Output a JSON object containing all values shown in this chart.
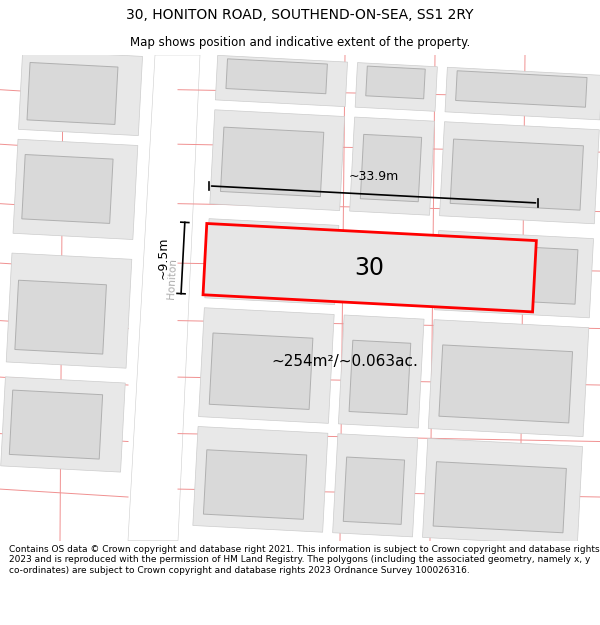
{
  "title": "30, HONITON ROAD, SOUTHEND-ON-SEA, SS1 2RY",
  "subtitle": "Map shows position and indicative extent of the property.",
  "footer": "Contains OS data © Crown copyright and database right 2021. This information is subject to Crown copyright and database rights 2023 and is reproduced with the permission of\nHM Land Registry. The polygons (including the associated geometry, namely x, y\nco-ordinates) are subject to Crown copyright and database rights 2023 Ordnance Survey\n100026316.",
  "map_bg": "#f0f0f0",
  "building_fill": "#d9d9d9",
  "building_edge": "#b0b0b0",
  "road_fill": "#ffffff",
  "plot_fill": "#e6e6e6",
  "plot_edge": "#ff0000",
  "plot_label": "30",
  "area_label": "~254m²/~0.063ac.",
  "width_label": "~33.9m",
  "height_label": "~9.5m",
  "street_label": "Honiton",
  "pink_line": "#f09090",
  "title_fontsize": 10,
  "subtitle_fontsize": 8.5,
  "footer_fontsize": 6.5
}
